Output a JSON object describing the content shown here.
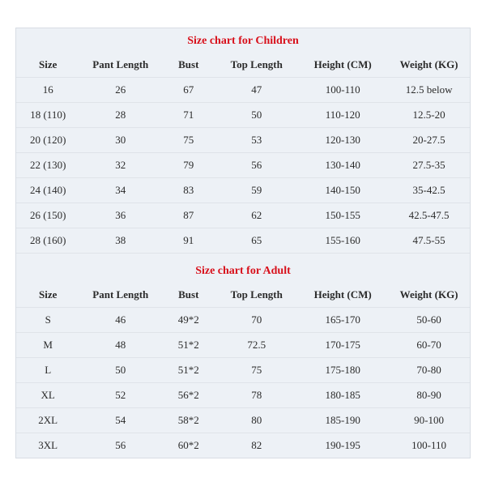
{
  "children": {
    "title": "Size chart for Children",
    "columns": [
      "Size",
      "Pant Length",
      "Bust",
      "Top Length",
      "Height (CM)",
      "Weight (KG)"
    ],
    "rows": [
      [
        "16",
        "26",
        "67",
        "47",
        "100-110",
        "12.5 below"
      ],
      [
        "18 (110)",
        "28",
        "71",
        "50",
        "110-120",
        "12.5-20"
      ],
      [
        "20 (120)",
        "30",
        "75",
        "53",
        "120-130",
        "20-27.5"
      ],
      [
        "22 (130)",
        "32",
        "79",
        "56",
        "130-140",
        "27.5-35"
      ],
      [
        "24 (140)",
        "34",
        "83",
        "59",
        "140-150",
        "35-42.5"
      ],
      [
        "26 (150)",
        "36",
        "87",
        "62",
        "150-155",
        "42.5-47.5"
      ],
      [
        "28 (160)",
        "38",
        "91",
        "65",
        "155-160",
        "47.5-55"
      ]
    ]
  },
  "adult": {
    "title": "Size chart for Adult",
    "columns": [
      "Size",
      "Pant Length",
      "Bust",
      "Top Length",
      "Height (CM)",
      "Weight (KG)"
    ],
    "rows": [
      [
        "S",
        "46",
        "49*2",
        "70",
        "165-170",
        "50-60"
      ],
      [
        "M",
        "48",
        "51*2",
        "72.5",
        "170-175",
        "60-70"
      ],
      [
        "L",
        "50",
        "51*2",
        "75",
        "175-180",
        "70-80"
      ],
      [
        "XL",
        "52",
        "56*2",
        "78",
        "180-185",
        "80-90"
      ],
      [
        "2XL",
        "54",
        "58*2",
        "80",
        "185-190",
        "90-100"
      ],
      [
        "3XL",
        "56",
        "60*2",
        "82",
        "190-195",
        "100-110"
      ]
    ]
  },
  "style": {
    "background": "#edf1f6",
    "border": "#d8dde4",
    "rowBorder": "#dfe3e9",
    "titleColor": "#d8101b",
    "textColor": "#2b2b2b",
    "fontSize": 13,
    "titleFontSize": 14,
    "colWidths": [
      "14%",
      "18%",
      "12%",
      "18%",
      "20%",
      "18%"
    ]
  }
}
